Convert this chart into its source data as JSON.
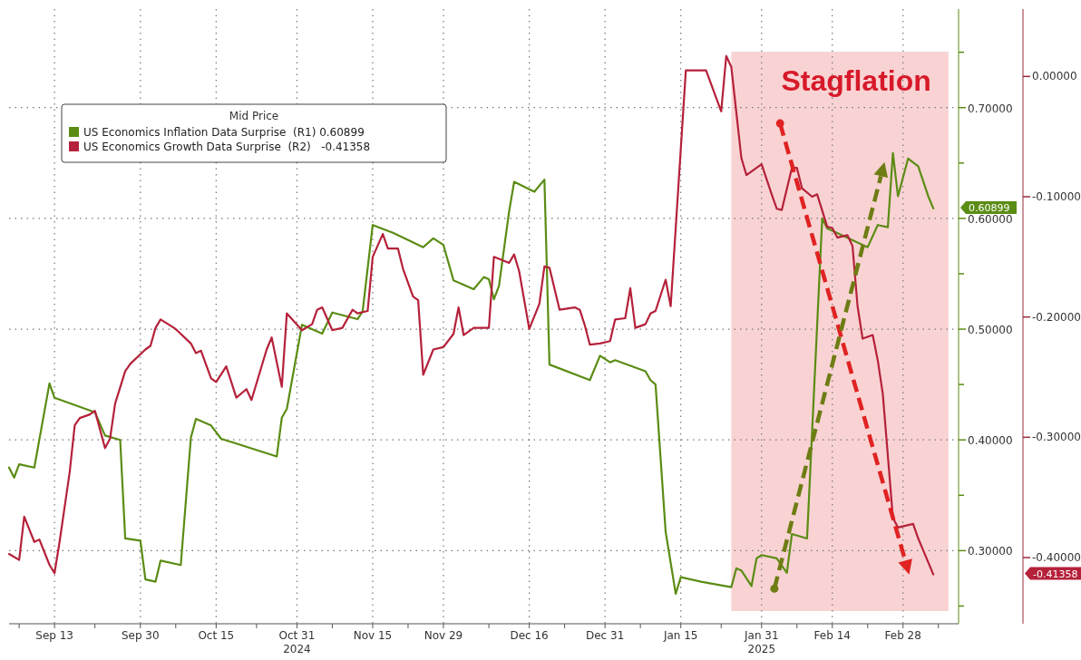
{
  "chart_data": {
    "type": "line",
    "legend": "top left",
    "legend_title": "Mid Price",
    "grid": true,
    "xlim": [
      "2024-09-04",
      "2025-03-11"
    ],
    "xticks": [
      {
        "value": "2024-09-06",
        "label": null
      },
      {
        "value": "2024-09-13",
        "label": "Sep 13"
      },
      {
        "value": "2024-09-21",
        "label": null
      },
      {
        "value": "2024-09-30",
        "label": "Sep 30"
      },
      {
        "value": "2024-10-07",
        "label": null
      },
      {
        "value": "2024-10-15",
        "label": "Oct 15"
      },
      {
        "value": "2024-10-23",
        "label": null
      },
      {
        "value": "2024-10-31",
        "label": "Oct 31\n2024"
      },
      {
        "value": "2024-11-07",
        "label": null
      },
      {
        "value": "2024-11-15",
        "label": "Nov 15"
      },
      {
        "value": "2024-11-22",
        "label": null
      },
      {
        "value": "2024-11-29",
        "label": "Nov 29"
      },
      {
        "value": "2024-12-08",
        "label": null
      },
      {
        "value": "2024-12-16",
        "label": "Dec 16"
      },
      {
        "value": "2024-12-23",
        "label": null
      },
      {
        "value": "2024-12-31",
        "label": "Dec 31"
      },
      {
        "value": "2025-01-07",
        "label": null
      },
      {
        "value": "2025-01-15",
        "label": "Jan 15"
      },
      {
        "value": "2025-01-23",
        "label": null
      },
      {
        "value": "2025-01-31",
        "label": "Jan 31\n2025"
      },
      {
        "value": "2025-02-07",
        "label": null
      },
      {
        "value": "2025-02-14",
        "label": "Feb 14"
      },
      {
        "value": "2025-02-21",
        "label": null
      },
      {
        "value": "2025-02-28",
        "label": "Feb 28"
      },
      {
        "value": "2025-03-07",
        "label": null
      }
    ],
    "ylim": [
      0.234,
      0.789
    ],
    "yticks": [
      {
        "value": 0.25,
        "label": null
      },
      {
        "value": 0.3,
        "label": "0.30000"
      },
      {
        "value": 0.35,
        "label": null
      },
      {
        "value": 0.4,
        "label": "0.40000"
      },
      {
        "value": 0.45,
        "label": null
      },
      {
        "value": 0.5,
        "label": "0.50000"
      },
      {
        "value": 0.55,
        "label": null
      },
      {
        "value": 0.6,
        "label": "0.60000"
      },
      {
        "value": 0.65,
        "label": null
      },
      {
        "value": 0.7,
        "label": "0.70000"
      },
      {
        "value": 0.75,
        "label": null
      }
    ],
    "y2lim": [
      -0.455,
      0.056
    ],
    "y2ticks": [
      {
        "value": -0.4,
        "label": "-0.40000"
      },
      {
        "value": -0.3,
        "label": "-0.30000"
      },
      {
        "value": -0.2,
        "label": "-0.20000"
      },
      {
        "value": -0.1,
        "label": "-0.10000"
      },
      {
        "value": 0,
        "label": "0.00000"
      }
    ],
    "annotations": [
      "0.60899",
      "-0.41358"
    ],
    "bands": [
      {
        "axis": "x",
        "from": "2025-01-25",
        "to": "2025-03-09",
        "label": "Stagflation",
        "color": "#f9d3d3"
      }
    ],
    "series": [
      {
        "name": "US Economics Inflation Data Surprise  (R1) 0.60899",
        "color": "#5b8c14",
        "x": [
          "2024-09-04",
          "2024-09-05",
          "2024-09-06",
          "2024-09-09",
          "2024-09-12",
          "2024-09-13",
          "2024-09-21",
          "2024-09-23",
          "2024-09-26",
          "2024-09-27",
          "2024-09-30",
          "2024-10-01",
          "2024-10-03",
          "2024-10-04",
          "2024-10-08",
          "2024-10-10",
          "2024-10-11",
          "2024-10-14",
          "2024-10-16",
          "2024-10-27",
          "2024-10-28",
          "2024-10-29",
          "2024-11-01",
          "2024-11-05",
          "2024-11-07",
          "2024-11-12",
          "2024-11-13",
          "2024-11-15",
          "2024-11-19",
          "2024-11-25",
          "2024-11-27",
          "2024-11-29",
          "2024-12-01",
          "2024-12-05",
          "2024-12-07",
          "2024-12-08",
          "2024-12-09",
          "2024-12-10",
          "2024-12-12",
          "2024-12-13",
          "2024-12-17",
          "2024-12-19",
          "2024-12-20",
          "2024-12-28",
          "2024-12-30",
          "2025-01-01",
          "2025-01-02",
          "2025-01-08",
          "2025-01-09",
          "2025-01-10",
          "2025-01-12",
          "2025-01-14",
          "2025-01-15",
          "2025-01-19",
          "2025-01-25",
          "2025-01-26",
          "2025-01-27",
          "2025-01-29",
          "2025-01-30",
          "2025-01-31",
          "2025-02-03",
          "2025-02-05",
          "2025-02-06",
          "2025-02-09",
          "2025-02-12",
          "2025-02-13",
          "2025-02-21",
          "2025-02-23",
          "2025-02-25",
          "2025-02-26",
          "2025-02-27",
          "2025-03-01",
          "2025-03-03",
          "2025-03-05",
          "2025-03-06"
        ],
        "values": [
          0.375,
          0.366,
          0.378,
          0.375,
          0.451,
          0.438,
          0.425,
          0.404,
          0.4,
          0.311,
          0.309,
          0.274,
          0.272,
          0.291,
          0.287,
          0.402,
          0.419,
          0.413,
          0.401,
          0.385,
          0.42,
          0.428,
          0.504,
          0.496,
          0.515,
          0.509,
          0.516,
          0.594,
          0.587,
          0.574,
          0.582,
          0.576,
          0.544,
          0.536,
          0.547,
          0.545,
          0.527,
          0.539,
          0.606,
          0.633,
          0.624,
          0.635,
          0.468,
          0.454,
          0.476,
          0.47,
          0.472,
          0.462,
          0.454,
          0.45,
          0.317,
          0.261,
          0.276,
          0.272,
          0.267,
          0.284,
          0.282,
          0.268,
          0.293,
          0.296,
          0.293,
          0.28,
          0.315,
          0.311,
          0.6,
          0.591,
          0.574,
          0.594,
          0.592,
          0.659,
          0.62,
          0.654,
          0.647,
          0.62,
          0.609
        ]
      },
      {
        "name": "US Economics Growth Data Surprise  (R2)   -0.41358",
        "color": "#b5213a",
        "axis": "y2",
        "x": [
          "2024-09-04",
          "2024-09-06",
          "2024-09-07",
          "2024-09-09",
          "2024-09-10",
          "2024-09-12",
          "2024-09-13",
          "2024-09-14",
          "2024-09-16",
          "2024-09-17",
          "2024-09-18",
          "2024-09-20",
          "2024-09-21",
          "2024-09-23",
          "2024-09-24",
          "2024-09-25",
          "2024-09-27",
          "2024-09-28",
          "2024-10-01",
          "2024-10-02",
          "2024-10-03",
          "2024-10-04",
          "2024-10-07",
          "2024-10-10",
          "2024-10-11",
          "2024-10-12",
          "2024-10-14",
          "2024-10-15",
          "2024-10-17",
          "2024-10-19",
          "2024-10-21",
          "2024-10-22",
          "2024-10-25",
          "2024-10-26",
          "2024-10-28",
          "2024-10-29",
          "2024-11-01",
          "2024-11-03",
          "2024-11-04",
          "2024-11-05",
          "2024-11-07",
          "2024-11-09",
          "2024-11-11",
          "2024-11-12",
          "2024-11-14",
          "2024-11-15",
          "2024-11-17",
          "2024-11-18",
          "2024-11-20",
          "2024-11-21",
          "2024-11-23",
          "2024-11-24",
          "2024-11-25",
          "2024-11-27",
          "2024-11-29",
          "2024-12-01",
          "2024-12-02",
          "2024-12-03",
          "2024-12-05",
          "2024-12-08",
          "2024-12-09",
          "2024-12-12",
          "2024-12-13",
          "2024-12-14",
          "2024-12-16",
          "2024-12-18",
          "2024-12-19",
          "2024-12-20",
          "2024-12-22",
          "2024-12-25",
          "2024-12-26",
          "2024-12-27",
          "2024-12-28",
          "2024-12-30",
          "2025-01-01",
          "2025-01-02",
          "2025-01-04",
          "2025-01-05",
          "2025-01-06",
          "2025-01-08",
          "2025-01-09",
          "2025-01-10",
          "2025-01-12",
          "2025-01-13",
          "2025-01-16",
          "2025-01-20",
          "2025-01-23",
          "2025-01-24",
          "2025-01-25",
          "2025-01-27",
          "2025-01-28",
          "2025-01-31",
          "2025-02-02",
          "2025-02-03",
          "2025-02-04",
          "2025-02-06",
          "2025-02-07",
          "2025-02-08",
          "2025-02-10",
          "2025-02-11",
          "2025-02-13",
          "2025-02-14",
          "2025-02-15",
          "2025-02-17",
          "2025-02-18",
          "2025-02-19",
          "2025-02-20",
          "2025-02-22",
          "2025-02-23",
          "2025-02-24",
          "2025-02-26",
          "2025-02-27",
          "2025-03-02",
          "2025-03-03",
          "2025-03-06"
        ],
        "values": [
          -0.397,
          -0.402,
          -0.366,
          -0.387,
          -0.385,
          -0.406,
          -0.413,
          -0.387,
          -0.329,
          -0.29,
          -0.284,
          -0.281,
          -0.278,
          -0.309,
          -0.301,
          -0.272,
          -0.245,
          -0.239,
          -0.227,
          -0.224,
          -0.209,
          -0.202,
          -0.21,
          -0.222,
          -0.23,
          -0.228,
          -0.251,
          -0.254,
          -0.241,
          -0.267,
          -0.26,
          -0.269,
          -0.227,
          -0.217,
          -0.258,
          -0.197,
          -0.211,
          -0.206,
          -0.194,
          -0.192,
          -0.211,
          -0.209,
          -0.194,
          -0.197,
          -0.195,
          -0.15,
          -0.131,
          -0.143,
          -0.143,
          -0.16,
          -0.183,
          -0.186,
          -0.248,
          -0.227,
          -0.225,
          -0.214,
          -0.192,
          -0.215,
          -0.209,
          -0.209,
          -0.15,
          -0.155,
          -0.148,
          -0.162,
          -0.21,
          -0.189,
          -0.158,
          -0.159,
          -0.194,
          -0.192,
          -0.194,
          -0.207,
          -0.223,
          -0.222,
          -0.22,
          -0.202,
          -0.201,
          -0.176,
          -0.209,
          -0.206,
          -0.197,
          -0.195,
          -0.169,
          -0.191,
          0.005,
          0.005,
          -0.029,
          0.017,
          0.008,
          -0.068,
          -0.082,
          -0.073,
          -0.098,
          -0.11,
          -0.111,
          -0.076,
          -0.076,
          -0.093,
          -0.1,
          -0.098,
          -0.125,
          -0.126,
          -0.134,
          -0.132,
          -0.141,
          -0.191,
          -0.218,
          -0.215,
          -0.236,
          -0.264,
          -0.367,
          -0.375,
          -0.372,
          -0.384,
          -0.414
        ]
      }
    ]
  }
}
